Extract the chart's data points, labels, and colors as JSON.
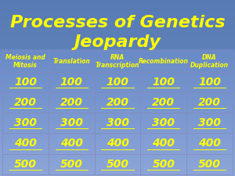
{
  "title_line1": "Processes of Genetics",
  "title_line2": "Jeopardy",
  "title_color": "#FFFF00",
  "title_fontsize": 16,
  "categories": [
    "Meiosis and\nMitosis",
    "Translation",
    "RNA\nTranscription",
    "Recombination",
    "DNA\nDuplication"
  ],
  "category_color": "#FFFF00",
  "category_fontsize": 5.5,
  "values": [
    100,
    200,
    300,
    400,
    500
  ],
  "value_color": "#FFFF00",
  "value_fontsize": 10,
  "grid_line_color": "#8888bb"
}
